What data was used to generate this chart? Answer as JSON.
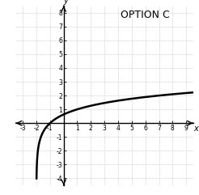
{
  "title": "OPTION C",
  "xlabel": "x",
  "ylabel": "y",
  "xlim": [
    -3.5,
    9.5
  ],
  "ylim": [
    -4.5,
    8.5
  ],
  "x_ticks": [
    -3,
    -2,
    -1,
    1,
    2,
    3,
    4,
    5,
    6,
    7,
    8,
    9
  ],
  "y_ticks": [
    -4,
    -3,
    -2,
    -1,
    1,
    2,
    3,
    4,
    5,
    6,
    7,
    8
  ],
  "asymptote": -2,
  "curve_color": "#000000",
  "grid_color": "#b0b0b0",
  "background_color": "#ffffff",
  "title_fontsize": 9,
  "tick_fontsize": 5.5,
  "line_width": 1.8,
  "base": 3,
  "shift": 2
}
